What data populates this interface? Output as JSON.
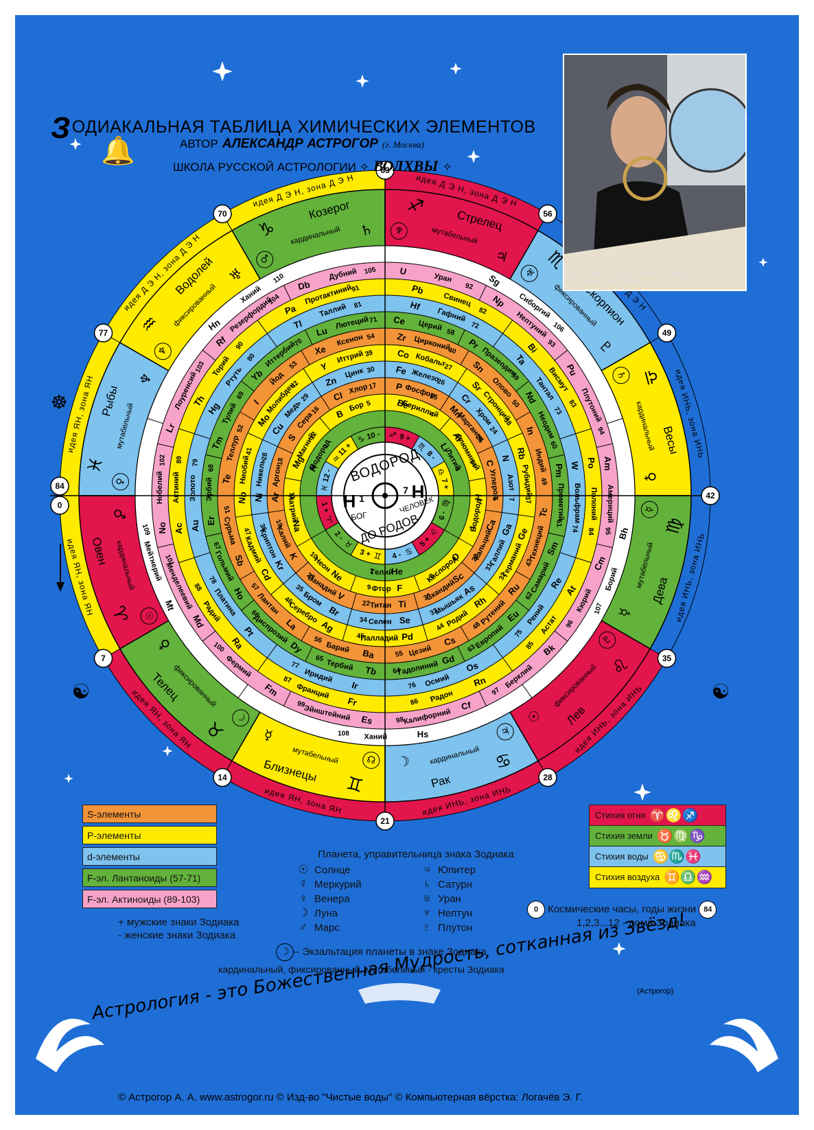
{
  "header": {
    "title_first_letter": "З",
    "title_rest": "ОДИАКАЛЬНАЯ ТАБЛИЦА ХИМИЧЕСКИХ ЭЛЕМЕНТОВ",
    "author_prefix": "АВТОР",
    "author_name": "АЛЕКСАНДР АСТРОГОР",
    "author_city": "(г. Москва)",
    "school": "ШКОЛА РУССКОЙ АСТРОЛОГИИ",
    "school_name": "ВОЛХВЫ",
    "school_star": "✧"
  },
  "photo": {
    "book_label": "Астрология - Божественная Мудрость, сотканная из Звёзд"
  },
  "center": {
    "top": "ВОДОРОД",
    "bottom": "ДО РОДОВ",
    "left_symbol": "H",
    "left_num": "1",
    "left_word": "БОГ",
    "right_symbol": "H",
    "right_num": "7",
    "right_word": "ЧЕЛОВЕК",
    "sun_symbol": "☉"
  },
  "outer_ring": {
    "labels": [
      "идея Д Э Н, зона Д Э Н",
      "идея Д Э Н, зона Д Э Н",
      "идея Д Э Н, зона Д Э Н",
      "идея ИНЬ, зона ИНЬ",
      "идея ИНЬ, зона ИНЬ",
      "идея ИНЬ, зона ИНЬ",
      "идея ИНЬ, зона ИНЬ",
      "идея ЯН, зона ЯН",
      "идея ЯН, зона ЯН",
      "идея ЯН, зона ЯН",
      "идея ЯН, зона ЯН",
      "идея Д Э Н, зона Д Э Н"
    ],
    "clock_years": [
      "63",
      "56",
      "49",
      "42",
      "35",
      "28",
      "21",
      "14",
      "7",
      "0",
      "84",
      "77",
      "70"
    ]
  },
  "signs": [
    {
      "name": "Козерог",
      "symbol": "♑",
      "cross": "кардинальный",
      "ruler": "♄",
      "exalt": "♂",
      "color": "#63b23b"
    },
    {
      "name": "Стрелец",
      "symbol": "♐",
      "cross": "мутабельный",
      "ruler": "♃",
      "exalt": "♆",
      "color": "#e2164c"
    },
    {
      "name": "Скорпион",
      "symbol": "♏",
      "cross": "фиксированный",
      "ruler": "♇",
      "exalt": "♅",
      "color": "#7ec2ee"
    },
    {
      "name": "Весы",
      "symbol": "♎",
      "cross": "кардинальный",
      "ruler": "♀",
      "exalt": "♄",
      "color": "#ffeb00"
    },
    {
      "name": "Дева",
      "symbol": "♍",
      "cross": "мутабельный",
      "ruler": "☿",
      "exalt": "☿",
      "color": "#63b23b"
    },
    {
      "name": "Лев",
      "symbol": "♌",
      "cross": "фиксированный",
      "ruler": "☉",
      "exalt": "♇",
      "color": "#e2164c"
    },
    {
      "name": "Рак",
      "symbol": "♋",
      "cross": "кардинальный",
      "ruler": "☽",
      "exalt": "♃",
      "color": "#7ec2ee"
    },
    {
      "name": "Близнецы",
      "symbol": "♊",
      "cross": "мутабельный",
      "ruler": "☿",
      "exalt": "☊",
      "color": "#ffeb00"
    },
    {
      "name": "Телец",
      "symbol": "♉",
      "cross": "фиксированный",
      "ruler": "♀",
      "exalt": "☽",
      "color": "#63b23b"
    },
    {
      "name": "Овен",
      "symbol": "♈",
      "cross": "кардинальный",
      "ruler": "♂",
      "exalt": "☉",
      "color": "#e2164c"
    },
    {
      "name": "Рыбы",
      "symbol": "♓",
      "cross": "мутабельный",
      "ruler": "♆",
      "exalt": "♀",
      "color": "#7ec2ee"
    },
    {
      "name": "Водолей",
      "symbol": "♒",
      "cross": "фиксированный",
      "ruler": "♅",
      "exalt": "♆",
      "color": "#ffeb00"
    }
  ],
  "houses": [
    {
      "label": "10 -",
      "sym": "♑",
      "color": "#63b23b"
    },
    {
      "label": "9 +",
      "sym": "♐",
      "color": "#e2164c"
    },
    {
      "label": "8 -",
      "sym": "♏",
      "color": "#7ec2ee"
    },
    {
      "label": "7 +",
      "sym": "♎",
      "color": "#ffeb00"
    },
    {
      "label": "6 -",
      "sym": "♍",
      "color": "#63b23b"
    },
    {
      "label": "5 +",
      "sym": "♌",
      "color": "#e2164c"
    },
    {
      "label": "4 -",
      "sym": "♋",
      "color": "#7ec2ee"
    },
    {
      "label": "3 +",
      "sym": "♊",
      "color": "#ffeb00"
    },
    {
      "label": "2 -",
      "sym": "♉",
      "color": "#63b23b"
    },
    {
      "label": "1 +",
      "sym": "♈",
      "color": "#e2164c"
    },
    {
      "label": "12 -",
      "sym": "♓",
      "color": "#7ec2ee"
    },
    {
      "label": "11 +",
      "sym": "♒",
      "color": "#ffeb00"
    }
  ],
  "rings": [
    {
      "color": "#63b23b",
      "cells": [
        {
          "num": "3",
          "sym": "Li",
          "name": "Литий"
        },
        {
          "num": "2",
          "sym": "He",
          "name": "Гелий"
        },
        {
          "num": "1",
          "sym": "H",
          "name": "Водород"
        }
      ]
    },
    {
      "color": "#ffeb00",
      "cells": [
        {
          "num": "4",
          "sym": "Be",
          "name": "Бериллий"
        },
        {
          "num": "14",
          "sym": "Al",
          "name": "Алюминий"
        },
        {
          "num": "1",
          "sym": "H",
          "name": "Водород"
        },
        {
          "num": "8",
          "sym": "O",
          "name": "Кислород"
        },
        {
          "num": "9",
          "sym": "F",
          "name": "Фтор"
        },
        {
          "num": "10",
          "sym": "Ne",
          "name": "Неон"
        },
        {
          "num": "11",
          "sym": "Na",
          "name": "Натрий"
        },
        {
          "num": "12",
          "sym": "Mg",
          "name": "Магний"
        },
        {
          "num": "5",
          "sym": "B",
          "name": "Бор"
        }
      ]
    },
    {
      "color": "#f39439",
      "cells": [
        {
          "num": "15",
          "sym": "P",
          "name": "Фосфор"
        },
        {
          "num": "25",
          "sym": "Mn",
          "name": "Марганец"
        },
        {
          "num": "6",
          "sym": "C",
          "name": "Углерод"
        },
        {
          "num": "20",
          "sym": "Ca",
          "name": "Кальций"
        },
        {
          "num": "21",
          "sym": "Sc",
          "name": "Скандий"
        },
        {
          "num": "22",
          "sym": "Ti",
          "name": "Титан"
        },
        {
          "num": "23",
          "sym": "V",
          "name": "Ванадий"
        },
        {
          "num": "19",
          "sym": "K",
          "name": "Калий"
        },
        {
          "num": "18",
          "sym": "Ar",
          "name": "Аргон"
        },
        {
          "num": "16",
          "sym": "S",
          "name": "Сера"
        },
        {
          "num": "17",
          "sym": "Cl",
          "name": "Хлор"
        }
      ]
    },
    {
      "color": "#7ec2ee",
      "cells": [
        {
          "num": "26",
          "sym": "Fe",
          "name": "Железо"
        },
        {
          "num": "24",
          "sym": "Cr",
          "name": "Хром"
        },
        {
          "num": "7",
          "sym": "N",
          "name": "Азот"
        },
        {
          "num": "31",
          "sym": "Ga",
          "name": "Галлий"
        },
        {
          "num": "33",
          "sym": "As",
          "name": "Мышьяк"
        },
        {
          "num": "34",
          "sym": "Se",
          "name": "Селен"
        },
        {
          "num": "35",
          "sym": "Br",
          "name": "Бром"
        },
        {
          "num": "36",
          "sym": "Kr",
          "name": "Криптон"
        },
        {
          "num": "28",
          "sym": "Ni",
          "name": "Никель"
        },
        {
          "num": "29",
          "sym": "Cu",
          "name": "Медь"
        },
        {
          "num": "30",
          "sym": "Zn",
          "name": "Цинк"
        }
      ]
    },
    {
      "color": "#ffeb00",
      "cells": [
        {
          "num": "27",
          "sym": "Co",
          "name": "Кобальт"
        },
        {
          "num": "38",
          "sym": "Sr",
          "name": "Стронций"
        },
        {
          "num": "37",
          "sym": "Rb",
          "name": "Рубидий"
        },
        {
          "num": "32",
          "sym": "Ge",
          "name": "Германий"
        },
        {
          "num": "44",
          "sym": "Rh",
          "name": "Родий"
        },
        {
          "num": "45",
          "sym": "Pd",
          "name": "Палладий"
        },
        {
          "num": "46",
          "sym": "Ag",
          "name": "Серебро"
        },
        {
          "num": "47",
          "sym": "Cd",
          "name": "Кадмий"
        },
        {
          "num": "41",
          "sym": "Nb",
          "name": "Ниобий"
        },
        {
          "num": "42",
          "sym": "Mo",
          "name": "Молибден"
        },
        {
          "num": "39",
          "sym": "Y",
          "name": "Иттрий"
        }
      ]
    },
    {
      "color": "#f39439",
      "cells": [
        {
          "num": "40",
          "sym": "Zr",
          "name": "Цирконий"
        },
        {
          "num": "50",
          "sym": "Sn",
          "name": "Олово"
        },
        {
          "num": "49",
          "sym": "In",
          "name": "Индий"
        },
        {
          "num": "43",
          "sym": "Tc",
          "name": "Технеций"
        },
        {
          "num": "48",
          "sym": "Ru",
          "name": "Рутений"
        },
        {
          "num": "55",
          "sym": "Cs",
          "name": "Цезий"
        },
        {
          "num": "56",
          "sym": "Ba",
          "name": "Барий"
        },
        {
          "num": "57",
          "sym": "La",
          "name": "Лантан"
        },
        {
          "num": "51",
          "sym": "Sb",
          "name": "Сурьма"
        },
        {
          "num": "52",
          "sym": "Te",
          "name": "Теллур"
        },
        {
          "num": "53",
          "sym": "I",
          "name": "Йод"
        },
        {
          "num": "54",
          "sym": "Xe",
          "name": "Ксенон"
        }
      ]
    },
    {
      "color": "#63b23b",
      "cells": [
        {
          "num": "58",
          "sym": "Ce",
          "name": "Церий"
        },
        {
          "num": "59",
          "sym": "Pr",
          "name": "Празеодим"
        },
        {
          "num": "60",
          "sym": "Nd",
          "name": "Неодим"
        },
        {
          "num": "61",
          "sym": "Pm",
          "name": "Прометий"
        },
        {
          "num": "62",
          "sym": "Sm",
          "name": "Самарий"
        },
        {
          "num": "63",
          "sym": "Eu",
          "name": "Европий"
        },
        {
          "num": "64",
          "sym": "Gd",
          "name": "Гадолиний"
        },
        {
          "num": "65",
          "sym": "Tb",
          "name": "Тербий"
        },
        {
          "num": "66",
          "sym": "Dy",
          "name": "Диспрозий"
        },
        {
          "num": "67",
          "sym": "Ho",
          "name": "Гольмий"
        },
        {
          "num": "68",
          "sym": "Er",
          "name": "Эрбий"
        },
        {
          "num": "69",
          "sym": "Tm",
          "name": "Тулий"
        },
        {
          "num": "70",
          "sym": "Yb",
          "name": "Иттербий"
        },
        {
          "num": "71",
          "sym": "Lu",
          "name": "Лютеций"
        }
      ]
    },
    {
      "color": "#7ec2ee",
      "cells": [
        {
          "num": "72",
          "sym": "Hf",
          "name": "Гафний"
        },
        {
          "num": "73",
          "sym": "Ta",
          "name": "Тантал"
        },
        {
          "num": "74",
          "sym": "W",
          "name": "Вольфрам"
        },
        {
          "num": "75",
          "sym": "Re",
          "name": "Рений"
        },
        {
          "num": "76",
          "sym": "Os",
          "name": "Осмий"
        },
        {
          "num": "77",
          "sym": "Ir",
          "name": "Иридий"
        },
        {
          "num": "78",
          "sym": "Pt",
          "name": "Платина"
        },
        {
          "num": "79",
          "sym": "Au",
          "name": "Золото"
        },
        {
          "num": "80",
          "sym": "Hg",
          "name": "Ртуть"
        },
        {
          "num": "81",
          "sym": "Tl",
          "name": "Таллий"
        }
      ]
    },
    {
      "color": "#ffeb00",
      "cells": [
        {
          "num": "82",
          "sym": "Pb",
          "name": "Свинец"
        },
        {
          "num": "83",
          "sym": "Bi",
          "name": "Висмут"
        },
        {
          "num": "84",
          "sym": "Po",
          "name": "Полоний"
        },
        {
          "num": "85",
          "sym": "At",
          "name": "Астат"
        },
        {
          "num": "86",
          "sym": "Rn",
          "name": "Радон"
        },
        {
          "num": "87",
          "sym": "Fr",
          "name": "Франций"
        },
        {
          "num": "88",
          "sym": "Ra",
          "name": "Радий"
        },
        {
          "num": "89",
          "sym": "Ac",
          "name": "Актиний"
        },
        {
          "num": "90",
          "sym": "Th",
          "name": "Торий"
        },
        {
          "num": "91",
          "sym": "Pa",
          "name": "Протактиний"
        }
      ]
    },
    {
      "color": "#f7a3c9",
      "cells": [
        {
          "num": "92",
          "sym": "U",
          "name": "Уран"
        },
        {
          "num": "93",
          "sym": "Np",
          "name": "Нептуний"
        },
        {
          "num": "94",
          "sym": "Pu",
          "name": "Плутоний"
        },
        {
          "num": "95",
          "sym": "Am",
          "name": "Америций"
        },
        {
          "num": "96",
          "sym": "Cm",
          "name": "Кюрий"
        },
        {
          "num": "97",
          "sym": "Bk",
          "name": "Берклий"
        },
        {
          "num": "98",
          "sym": "Cf",
          "name": "Калифорний"
        },
        {
          "num": "99",
          "sym": "Es",
          "name": "Эйнштейний"
        },
        {
          "num": "100",
          "sym": "Fm",
          "name": "Фермий"
        },
        {
          "num": "101",
          "sym": "Md",
          "name": "Менделеевий"
        },
        {
          "num": "102",
          "sym": "No",
          "name": "Нобелий"
        },
        {
          "num": "103",
          "sym": "Lr",
          "name": "Лоуренсий"
        },
        {
          "num": "104",
          "sym": "Rf",
          "name": "Резерфордий"
        },
        {
          "num": "105",
          "sym": "Db",
          "name": "Дубний"
        }
      ]
    },
    {
      "color": "#ffffff",
      "cells": [
        {
          "num": "106",
          "sym": "Sg",
          "name": "Сиборгий"
        },
        {
          "num": "107",
          "sym": "Bh",
          "name": "Борий"
        },
        {
          "num": "108",
          "sym": "Hs",
          "name": "Ханий"
        },
        {
          "num": "109",
          "sym": "Mt",
          "name": "Мейтнерий"
        },
        {
          "num": "110",
          "sym": "Hn",
          "name": "Ханий"
        }
      ]
    }
  ],
  "legend_left": [
    {
      "label": "S-элементы",
      "color": "#f39439"
    },
    {
      "label": "P-элементы",
      "color": "#ffeb00"
    },
    {
      "label": "d-элементы",
      "color": "#7ec2ee"
    },
    {
      "label": "F-эл. Лантаноиды (57-71)",
      "color": "#63b23b"
    },
    {
      "label": "F-эл. Актиноиды (89-103)",
      "color": "#f7a3c9"
    }
  ],
  "legend_right": [
    {
      "label": "Стихия огня",
      "symbols": "♈♌♐",
      "color": "#e2164c"
    },
    {
      "label": "Стихия земли",
      "symbols": "♉♍♑",
      "color": "#63b23b"
    },
    {
      "label": "Стихия воды",
      "symbols": "♋♏♓",
      "color": "#7ec2ee"
    },
    {
      "label": "Стихия воздуха",
      "symbols": "♊♎♒",
      "color": "#ffeb00"
    }
  ],
  "planets": {
    "title": "Планета, управительница знака Зодиака",
    "left": [
      {
        "sym": "☉",
        "name": "Солнце"
      },
      {
        "sym": "☿",
        "name": "Меркурий"
      },
      {
        "sym": "♀",
        "name": "Венера"
      },
      {
        "sym": "☽",
        "name": "Луна"
      },
      {
        "sym": "♂",
        "name": "Марс"
      }
    ],
    "right": [
      {
        "sym": "♃",
        "name": "Юпитер"
      },
      {
        "sym": "♄",
        "name": "Сатурн"
      },
      {
        "sym": "♅",
        "name": "Уран"
      },
      {
        "sym": "♆",
        "name": "Нептун"
      },
      {
        "sym": "♇",
        "name": "Плутон"
      }
    ]
  },
  "notes": {
    "male": "+ мужские знаки Зодиака",
    "female": "- женские знаки Зодиака",
    "clock_start": "0",
    "clock_text": "Космические часы, годы жизни",
    "clock_end": "84",
    "houses": "1,2,3...12 - дома Зодиака",
    "exalt_sym": "☽",
    "exalt": "– Экзальтация планеты в знаке Зодиака",
    "crosses": "кардинальный, фиксированный, мутабельный  -   кресты Зодиака"
  },
  "motto": {
    "text": "Астрология - это Божественная Мудрость, сотканная из Звёзд!",
    "author": "(Астрогор)"
  },
  "footer": {
    "copyright": "© Астрогор А. А. www.astrogor.ru  © Изд-во \"Чистые воды\"  © Компьютерная вёрстка: Логачёв Э. Г."
  }
}
